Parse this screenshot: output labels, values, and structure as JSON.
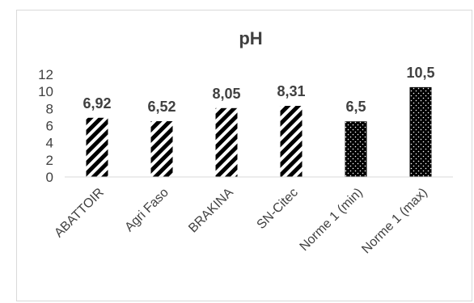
{
  "chart_data": {
    "type": "bar",
    "title": "pH",
    "xlabel": "",
    "ylabel": "",
    "categories": [
      "ABATTOIR",
      "Agri Faso",
      "BRAKINA",
      "SN-Citec",
      "Norme 1 (min)",
      "Norme 1 (max)"
    ],
    "values": [
      6.92,
      6.52,
      8.05,
      8.31,
      6.5,
      10.5
    ],
    "data_labels": [
      "6,92",
      "6,52",
      "8,05",
      "8,31",
      "6,5",
      "10,5"
    ],
    "patterns": [
      "diagonal-stripes",
      "diagonal-stripes",
      "diagonal-stripes",
      "diagonal-stripes",
      "dotted",
      "dotted"
    ],
    "ylim": [
      0,
      12
    ],
    "yticks": [
      "0",
      "2",
      "4",
      "6",
      "8",
      "10",
      "12"
    ],
    "grid": false,
    "legend": "none",
    "colors": {
      "bar": "#000000",
      "text": "#404040",
      "border": "#d9d9d9"
    }
  }
}
